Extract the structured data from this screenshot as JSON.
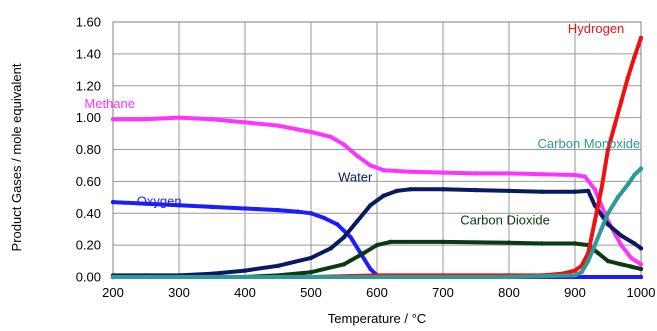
{
  "chart_data": {
    "type": "line",
    "title": "",
    "xlabel": "Temperature / °C",
    "ylabel": "Product Gases / mole equivalent",
    "xlim": [
      200,
      1000
    ],
    "ylim": [
      0,
      1.6
    ],
    "x_ticks": [
      200,
      300,
      400,
      500,
      600,
      700,
      800,
      900,
      1000
    ],
    "y_ticks": [
      "0.00",
      "0.20",
      "0.40",
      "0.60",
      "0.80",
      "1.00",
      "1.20",
      "1.40",
      "1.60"
    ],
    "grid": true,
    "legend": "none",
    "series": [
      {
        "name": "Methane",
        "color": "#ff33ff",
        "points": [
          [
            200,
            0.99
          ],
          [
            250,
            0.99
          ],
          [
            300,
            1.0
          ],
          [
            350,
            0.99
          ],
          [
            400,
            0.97
          ],
          [
            450,
            0.95
          ],
          [
            500,
            0.91
          ],
          [
            530,
            0.88
          ],
          [
            550,
            0.83
          ],
          [
            570,
            0.76
          ],
          [
            590,
            0.7
          ],
          [
            610,
            0.67
          ],
          [
            650,
            0.66
          ],
          [
            700,
            0.655
          ],
          [
            750,
            0.65
          ],
          [
            800,
            0.65
          ],
          [
            850,
            0.645
          ],
          [
            900,
            0.64
          ],
          [
            915,
            0.63
          ],
          [
            930,
            0.55
          ],
          [
            950,
            0.35
          ],
          [
            970,
            0.2
          ],
          [
            985,
            0.12
          ],
          [
            1000,
            0.08
          ]
        ]
      },
      {
        "name": "Oxygen",
        "color": "#1c1cff",
        "points": [
          [
            200,
            0.47
          ],
          [
            250,
            0.46
          ],
          [
            300,
            0.45
          ],
          [
            350,
            0.44
          ],
          [
            400,
            0.43
          ],
          [
            450,
            0.42
          ],
          [
            480,
            0.41
          ],
          [
            500,
            0.4
          ],
          [
            520,
            0.37
          ],
          [
            540,
            0.33
          ],
          [
            560,
            0.25
          ],
          [
            575,
            0.15
          ],
          [
            590,
            0.05
          ],
          [
            600,
            0.01
          ],
          [
            620,
            0.0
          ],
          [
            700,
            0.0
          ],
          [
            800,
            0.0
          ],
          [
            900,
            0.0
          ],
          [
            1000,
            0.0
          ]
        ]
      },
      {
        "name": "Water",
        "color": "#0a1a60",
        "points": [
          [
            200,
            0.01
          ],
          [
            250,
            0.01
          ],
          [
            300,
            0.01
          ],
          [
            350,
            0.02
          ],
          [
            400,
            0.04
          ],
          [
            450,
            0.07
          ],
          [
            500,
            0.12
          ],
          [
            530,
            0.18
          ],
          [
            550,
            0.25
          ],
          [
            570,
            0.35
          ],
          [
            590,
            0.45
          ],
          [
            610,
            0.51
          ],
          [
            630,
            0.54
          ],
          [
            650,
            0.55
          ],
          [
            700,
            0.55
          ],
          [
            750,
            0.545
          ],
          [
            800,
            0.54
          ],
          [
            850,
            0.535
          ],
          [
            900,
            0.535
          ],
          [
            920,
            0.54
          ],
          [
            930,
            0.45
          ],
          [
            950,
            0.33
          ],
          [
            970,
            0.26
          ],
          [
            990,
            0.21
          ],
          [
            1000,
            0.18
          ]
        ]
      },
      {
        "name": "Carbon Dioxide",
        "color": "#0a3a12",
        "points": [
          [
            200,
            0.0
          ],
          [
            300,
            0.0
          ],
          [
            400,
            0.0
          ],
          [
            450,
            0.01
          ],
          [
            500,
            0.03
          ],
          [
            550,
            0.08
          ],
          [
            580,
            0.15
          ],
          [
            600,
            0.2
          ],
          [
            620,
            0.22
          ],
          [
            700,
            0.22
          ],
          [
            800,
            0.215
          ],
          [
            850,
            0.21
          ],
          [
            900,
            0.21
          ],
          [
            920,
            0.2
          ],
          [
            935,
            0.15
          ],
          [
            950,
            0.1
          ],
          [
            970,
            0.08
          ],
          [
            985,
            0.065
          ],
          [
            1000,
            0.05
          ]
        ]
      },
      {
        "name": "Hydrogen",
        "color": "#ee1111",
        "points": [
          [
            200,
            0.0
          ],
          [
            500,
            0.0
          ],
          [
            600,
            0.01
          ],
          [
            700,
            0.01
          ],
          [
            800,
            0.01
          ],
          [
            850,
            0.01
          ],
          [
            880,
            0.02
          ],
          [
            900,
            0.04
          ],
          [
            910,
            0.07
          ],
          [
            920,
            0.15
          ],
          [
            930,
            0.35
          ],
          [
            940,
            0.55
          ],
          [
            950,
            0.8
          ],
          [
            960,
            0.95
          ],
          [
            970,
            1.1
          ],
          [
            980,
            1.25
          ],
          [
            990,
            1.38
          ],
          [
            1000,
            1.5
          ]
        ]
      },
      {
        "name": "Carbon Monoxide",
        "color": "#2a9a9a",
        "points": [
          [
            200,
            0.0
          ],
          [
            500,
            0.0
          ],
          [
            600,
            0.0
          ],
          [
            800,
            0.0
          ],
          [
            900,
            0.01
          ],
          [
            910,
            0.03
          ],
          [
            920,
            0.1
          ],
          [
            930,
            0.2
          ],
          [
            940,
            0.3
          ],
          [
            950,
            0.4
          ],
          [
            965,
            0.5
          ],
          [
            980,
            0.58
          ],
          [
            990,
            0.64
          ],
          [
            1000,
            0.68
          ]
        ]
      }
    ],
    "series_labels": [
      {
        "name": "Methane",
        "x": 195,
        "y": 1.06,
        "anchor": "middle"
      },
      {
        "name": "Oxygen",
        "x": 270,
        "y": 0.45,
        "anchor": "middle"
      },
      {
        "name": "Water",
        "x": 567,
        "y": 0.6,
        "anchor": "middle"
      },
      {
        "name": "Carbon Dioxide",
        "x": 794,
        "y": 0.33,
        "anchor": "middle"
      },
      {
        "name": "Hydrogen",
        "x": 932,
        "y": 1.53,
        "anchor": "middle"
      },
      {
        "name": "Carbon Monoxide",
        "x": 921,
        "y": 0.81,
        "anchor": "middle"
      }
    ]
  }
}
